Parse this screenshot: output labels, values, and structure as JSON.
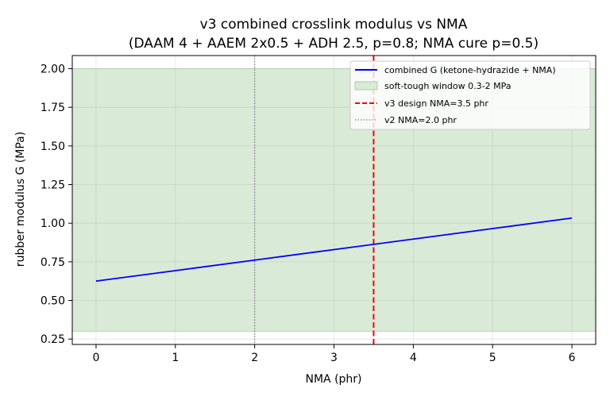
{
  "chart_data": {
    "type": "line",
    "title_line1": "v3 combined crosslink modulus vs NMA",
    "title_line2": "(DAAM 4 + AAEM 2x0.5 + ADH 2.5, p=0.8; NMA cure p=0.5)",
    "xlabel": "NMA (phr)",
    "ylabel": "rubber modulus G (MPa)",
    "xlim": [
      -0.3,
      6.3
    ],
    "ylim": [
      0.215,
      2.085
    ],
    "xticks": [
      0,
      1,
      2,
      3,
      4,
      5,
      6
    ],
    "xtick_labels": [
      "0",
      "1",
      "2",
      "3",
      "4",
      "5",
      "6"
    ],
    "yticks": [
      0.25,
      0.5,
      0.75,
      1.0,
      1.25,
      1.5,
      1.75,
      2.0
    ],
    "ytick_labels": [
      "0.25",
      "0.50",
      "0.75",
      "1.00",
      "1.25",
      "1.50",
      "1.75",
      "2.00"
    ],
    "grid": true,
    "legend_position": "top-right",
    "series": [
      {
        "name": "combined G (ketone-hydrazide + NMA)",
        "color": "#0000ff",
        "x": [
          0,
          1,
          2,
          3,
          4,
          5,
          6
        ],
        "y": [
          0.625,
          0.693,
          0.761,
          0.829,
          0.897,
          0.965,
          1.033
        ]
      }
    ],
    "band": {
      "name": "soft-tough window 0.3-2 MPa",
      "y0": 0.3,
      "y1": 2.0,
      "color": "#d9ead7"
    },
    "vlines": [
      {
        "name": "v3 design NMA=3.5 phr",
        "x": 3.5,
        "color": "#ff0000",
        "style": "dashed"
      },
      {
        "name": "v2 NMA=2.0 phr",
        "x": 2.0,
        "color": "#808080",
        "style": "dotted"
      }
    ]
  }
}
